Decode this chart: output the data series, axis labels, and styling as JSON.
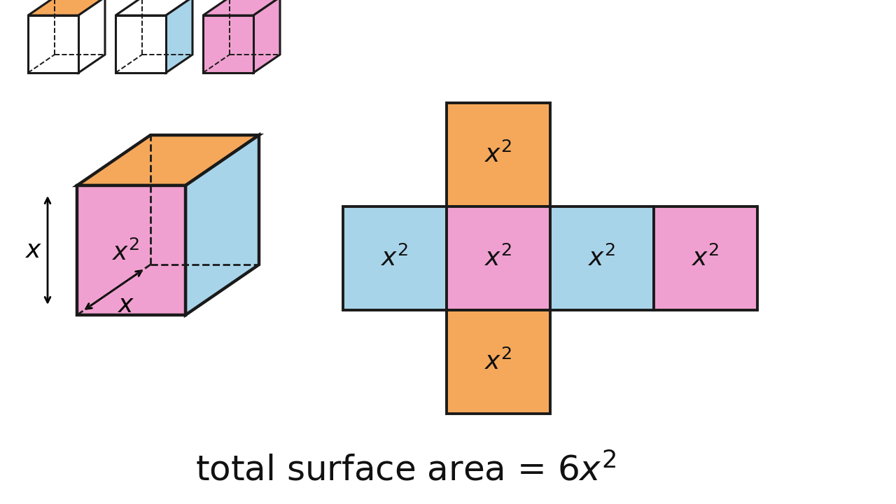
{
  "bg_color": "#FFFFFF",
  "orange": "#F5A85A",
  "blue": "#A8D4EA",
  "pink": "#F0A0D0",
  "white": "#FFFFFF",
  "outline": "#1a1a1a",
  "text_color": "#111111",
  "lw_thick": 2.8,
  "lw_thin": 1.8,
  "small_cubes": [
    {
      "top": "#F5A85A",
      "front": "#FFFFFF",
      "right": "#FFFFFF"
    },
    {
      "top": "#FFFFFF",
      "front": "#FFFFFF",
      "right": "#A8D4EA"
    },
    {
      "top": "#F0A0D0",
      "front": "#F0A0D0",
      "right": "#F0A0D0"
    }
  ],
  "net_row_colors": [
    "#A8D4EA",
    "#F0A0D0",
    "#A8D4EA",
    "#F0A0D0"
  ],
  "net_top_color": "#F5A85A",
  "net_bottom_color": "#F5A85A",
  "footer": "total surface area = $6x^2$"
}
